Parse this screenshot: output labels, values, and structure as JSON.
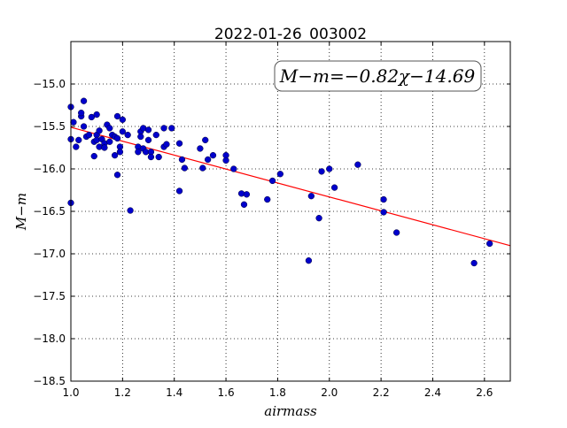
{
  "chart_data": {
    "type": "scatter",
    "title": "2022-01-26_003002",
    "xlabel": "airmass",
    "ylabel": "M−m",
    "xlim": [
      1.0,
      2.7
    ],
    "ylim": [
      -18.5,
      -14.5
    ],
    "x_ticks": [
      1.0,
      1.2,
      1.4,
      1.6,
      1.8,
      2.0,
      2.2,
      2.4,
      2.6
    ],
    "x_tick_labels": [
      "1.0",
      "1.2",
      "1.4",
      "1.6",
      "1.8",
      "2.0",
      "2.2",
      "2.4",
      "2.6"
    ],
    "y_ticks": [
      -15.0,
      -15.5,
      -16.0,
      -16.5,
      -17.0,
      -17.5,
      -18.0,
      -18.5
    ],
    "y_tick_labels": [
      "−15.0",
      "−15.5",
      "−16.0",
      "−16.5",
      "−17.0",
      "−17.5",
      "−18.0",
      "−18.5"
    ],
    "grid": true,
    "annotation": "M−m=−0.82χ−14.69",
    "fit": {
      "slope": -0.82,
      "intercept": -14.69,
      "color": "#ff0000"
    },
    "point_color": "#0000cc",
    "points": [
      [
        1.0,
        -15.27
      ],
      [
        1.0,
        -15.65
      ],
      [
        1.0,
        -16.4
      ],
      [
        1.01,
        -15.45
      ],
      [
        1.02,
        -15.74
      ],
      [
        1.03,
        -15.66
      ],
      [
        1.04,
        -15.38
      ],
      [
        1.04,
        -15.34
      ],
      [
        1.05,
        -15.2
      ],
      [
        1.05,
        -15.5
      ],
      [
        1.06,
        -15.62
      ],
      [
        1.07,
        -15.6
      ],
      [
        1.08,
        -15.39
      ],
      [
        1.09,
        -15.68
      ],
      [
        1.09,
        -15.85
      ],
      [
        1.1,
        -15.36
      ],
      [
        1.1,
        -15.6
      ],
      [
        1.1,
        -15.66
      ],
      [
        1.11,
        -15.55
      ],
      [
        1.11,
        -15.74
      ],
      [
        1.12,
        -15.65
      ],
      [
        1.13,
        -15.7
      ],
      [
        1.13,
        -15.75
      ],
      [
        1.14,
        -15.48
      ],
      [
        1.15,
        -15.52
      ],
      [
        1.15,
        -15.68
      ],
      [
        1.16,
        -15.6
      ],
      [
        1.17,
        -15.62
      ],
      [
        1.17,
        -15.84
      ],
      [
        1.18,
        -15.38
      ],
      [
        1.18,
        -15.64
      ],
      [
        1.18,
        -16.07
      ],
      [
        1.19,
        -15.74
      ],
      [
        1.19,
        -15.8
      ],
      [
        1.2,
        -15.42
      ],
      [
        1.2,
        -15.56
      ],
      [
        1.22,
        -15.6
      ],
      [
        1.23,
        -16.49
      ],
      [
        1.26,
        -15.74
      ],
      [
        1.26,
        -15.8
      ],
      [
        1.27,
        -15.56
      ],
      [
        1.27,
        -15.62
      ],
      [
        1.28,
        -15.52
      ],
      [
        1.28,
        -15.76
      ],
      [
        1.29,
        -15.8
      ],
      [
        1.3,
        -15.54
      ],
      [
        1.3,
        -15.66
      ],
      [
        1.31,
        -15.8
      ],
      [
        1.31,
        -15.86
      ],
      [
        1.33,
        -15.6
      ],
      [
        1.34,
        -15.86
      ],
      [
        1.36,
        -15.52
      ],
      [
        1.36,
        -15.74
      ],
      [
        1.37,
        -15.71
      ],
      [
        1.39,
        -15.52
      ],
      [
        1.42,
        -15.7
      ],
      [
        1.42,
        -16.26
      ],
      [
        1.43,
        -15.89
      ],
      [
        1.44,
        -15.99
      ],
      [
        1.5,
        -15.76
      ],
      [
        1.51,
        -15.99
      ],
      [
        1.52,
        -15.66
      ],
      [
        1.53,
        -15.89
      ],
      [
        1.55,
        -15.84
      ],
      [
        1.6,
        -15.84
      ],
      [
        1.6,
        -15.9
      ],
      [
        1.63,
        -16.0
      ],
      [
        1.66,
        -16.29
      ],
      [
        1.67,
        -16.42
      ],
      [
        1.68,
        -16.3
      ],
      [
        1.76,
        -16.36
      ],
      [
        1.78,
        -16.14
      ],
      [
        1.81,
        -16.06
      ],
      [
        1.92,
        -17.08
      ],
      [
        1.93,
        -16.32
      ],
      [
        1.96,
        -16.58
      ],
      [
        1.97,
        -16.03
      ],
      [
        2.0,
        -16.0
      ],
      [
        2.02,
        -16.22
      ],
      [
        2.11,
        -15.95
      ],
      [
        2.21,
        -16.36
      ],
      [
        2.21,
        -16.51
      ],
      [
        2.26,
        -16.75
      ],
      [
        2.56,
        -17.11
      ],
      [
        2.62,
        -16.88
      ]
    ]
  }
}
